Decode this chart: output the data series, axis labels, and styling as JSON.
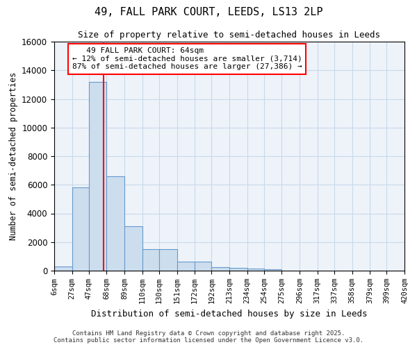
{
  "title1": "49, FALL PARK COURT, LEEDS, LS13 2LP",
  "title2": "Size of property relative to semi-detached houses in Leeds",
  "xlabel": "Distribution of semi-detached houses by size in Leeds",
  "ylabel": "Number of semi-detached properties",
  "bins": [
    6,
    27,
    47,
    68,
    89,
    110,
    130,
    151,
    172,
    192,
    213,
    234,
    254,
    275,
    296,
    317,
    337,
    358,
    379,
    399,
    420
  ],
  "bin_labels": [
    "6sqm",
    "27sqm",
    "47sqm",
    "68sqm",
    "89sqm",
    "110sqm",
    "130sqm",
    "151sqm",
    "172sqm",
    "192sqm",
    "213sqm",
    "234sqm",
    "254sqm",
    "275sqm",
    "296sqm",
    "317sqm",
    "337sqm",
    "358sqm",
    "379sqm",
    "399sqm",
    "420sqm"
  ],
  "counts": [
    270,
    5800,
    13200,
    6600,
    3100,
    1500,
    1480,
    640,
    640,
    250,
    200,
    150,
    100,
    0,
    0,
    0,
    0,
    0,
    0,
    0
  ],
  "bar_color": "#ccdded",
  "bar_edge_color": "#6699cc",
  "property_size": 64,
  "property_label": "49 FALL PARK COURT: 64sqm",
  "smaller_pct": 12,
  "smaller_count": 3714,
  "larger_pct": 87,
  "larger_count": 27386,
  "vline_color": "red",
  "grid_color": "#c8d8e8",
  "bg_color": "#eef3fa",
  "ylim": [
    0,
    16000
  ],
  "yticks": [
    0,
    2000,
    4000,
    6000,
    8000,
    10000,
    12000,
    14000,
    16000
  ],
  "footer1": "Contains HM Land Registry data © Crown copyright and database right 2025.",
  "footer2": "Contains public sector information licensed under the Open Government Licence v3.0."
}
